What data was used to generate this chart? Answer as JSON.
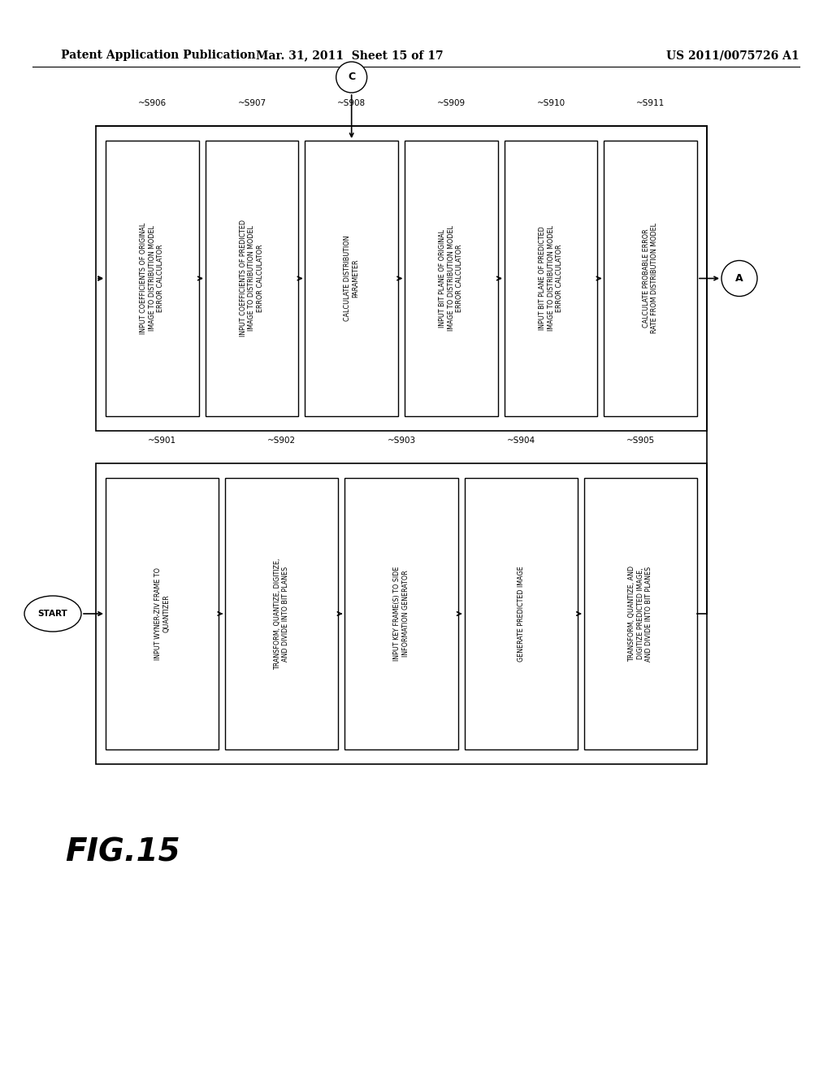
{
  "header_left": "Patent Application Publication",
  "header_mid": "Mar. 31, 2011  Sheet 15 of 17",
  "header_right": "US 2011/0075726 A1",
  "fig_label": "FIG.15",
  "bg_color": "#ffffff",
  "top_steps": [
    {
      "label": "~S906",
      "text": "INPUT COEFFICIENTS OF ORIGINAL\nIMAGE TO DISTRIBUTION MODEL\nERROR CALCULATOR"
    },
    {
      "label": "~S907",
      "text": "INPUT COEFFICIENTS OF PREDICTED\nIMAGE TO DISTRIBUTION MODEL\nERROR CALCULATOR"
    },
    {
      "label": "~S908",
      "text": "CALCULATE DISTRIBUTION\nPARAMETER"
    },
    {
      "label": "~S909",
      "text": "INPUT BIT PLANE OF ORIGINAL\nIMAGE TO DISTRIBUTION MODEL\nERROR CALCULATOR"
    },
    {
      "label": "~S910",
      "text": "INPUT BIT PLANE OF PREDICTED\nIMAGE TO DISTRIBUTION MODEL\nERROR CALCULATOR"
    },
    {
      "label": "~S911",
      "text": "CALCULATE PROBABLE ERROR\nRATE FROM DISTRIBUTION MODEL"
    }
  ],
  "bottom_steps": [
    {
      "label": "~S901",
      "text": "INPUT WYNER-ZIV FRAME TO\nQUANTIZER"
    },
    {
      "label": "~S902",
      "text": "TRANSFORM, QUANTIZE, DIGITIZE,\nAND DIVIDE INTO BIT PLANES"
    },
    {
      "label": "~S903",
      "text": "INPUT KEY FRAME(S) TO SIDE\nINFORMATION GENERATOR"
    },
    {
      "label": "~S904",
      "text": "GENERATE PREDICTED IMAGE"
    },
    {
      "label": "~S905",
      "text": "TRANSFORM, QUANTIZE, AND\nDIGITIZE PREDICTED IMAGE,\nAND DIVIDE INTO BIT PLANES"
    }
  ]
}
